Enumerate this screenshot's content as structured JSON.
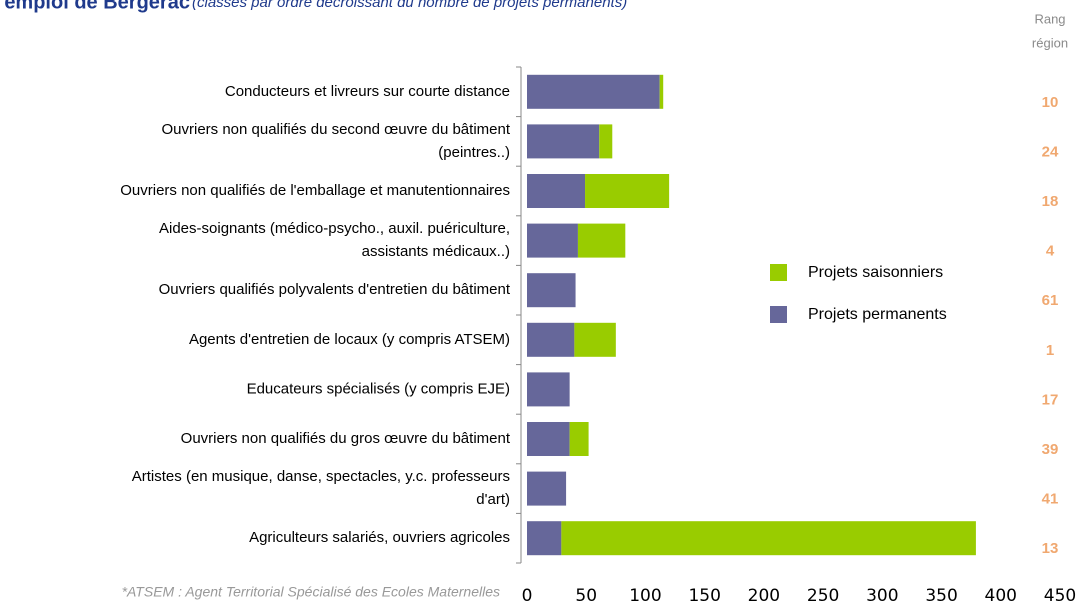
{
  "chart_data": {
    "type": "stacked-barh",
    "title": "l'emploi de Bergerac",
    "subtitle": "(classés par ordre décroissant du nombre de projets permanents)",
    "rank_header": [
      "Rang",
      "région"
    ],
    "footnote": "*ATSEM : Agent Territorial Spécialisé des Ecoles Maternelles",
    "categories": [
      [
        "Conducteurs et livreurs sur courte distance"
      ],
      [
        "Ouvriers non qualifiés du second œuvre du bâtiment",
        "(peintres..)"
      ],
      [
        "Ouvriers non qualifiés de l'emballage et manutentionnaires"
      ],
      [
        "Aides-soignants (médico-psycho., auxil. puériculture,",
        "assistants médicaux..)"
      ],
      [
        "Ouvriers qualifiés polyvalents d'entretien du bâtiment"
      ],
      [
        "Agents d'entretien de locaux (y compris ATSEM)"
      ],
      [
        "Educateurs spécialisés (y compris EJE)"
      ],
      [
        "Ouvriers non qualifiés du gros œuvre du bâtiment"
      ],
      [
        "Artistes (en musique, danse, spectacles, y.c. professeurs",
        "d'art)"
      ],
      [
        "Agriculteurs salariés, ouvriers agricoles"
      ]
    ],
    "series": [
      {
        "name": "Projets permanents",
        "color": "#66679a",
        "values": [
          112,
          61,
          49,
          43,
          41,
          40,
          36,
          36,
          33,
          29
        ]
      },
      {
        "name": "Projets saisonniers",
        "color": "#99cc00",
        "values": [
          3,
          11,
          71,
          40,
          0,
          35,
          0,
          16,
          0,
          350
        ]
      }
    ],
    "ranks": [
      10,
      24,
      18,
      4,
      61,
      1,
      17,
      39,
      41,
      13
    ],
    "xlim": [
      0,
      450
    ],
    "xticks": [
      0,
      50,
      100,
      150,
      200,
      250,
      300,
      350,
      400,
      450
    ]
  }
}
